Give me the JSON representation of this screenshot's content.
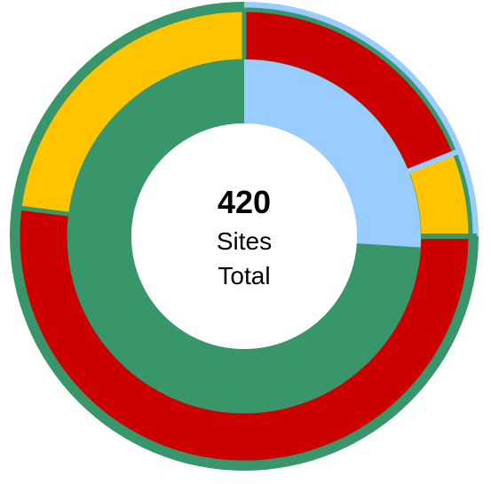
{
  "chart_data": {
    "type": "donut",
    "center": {
      "value": "420",
      "line1": "Sites",
      "line2": "Total"
    },
    "outer_ring": [
      {
        "fraction": 0.19,
        "color": "#CC0000"
      },
      {
        "fraction": 0.06,
        "color": "#FFC300"
      },
      {
        "fraction": 0.52,
        "color": "#CC0000"
      },
      {
        "fraction": 0.23,
        "color": "#FFC300"
      }
    ],
    "inner_ring": [
      {
        "fraction": 0.26,
        "color": "#99CCFF"
      },
      {
        "fraction": 0.74,
        "color": "#38966A"
      }
    ],
    "outer_border": [
      {
        "fraction": 0.25,
        "color": "#99CCFF"
      },
      {
        "fraction": 0.75,
        "color": "#38966A"
      }
    ]
  }
}
